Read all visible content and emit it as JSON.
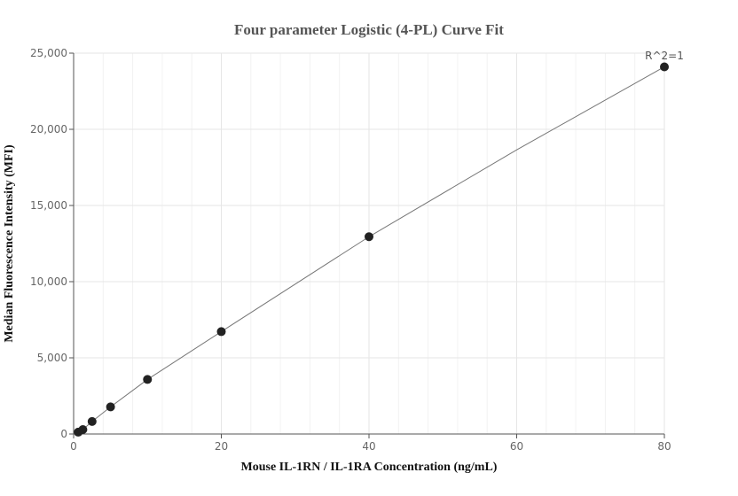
{
  "chart_data": {
    "type": "scatter",
    "title": "Four parameter Logistic (4-PL) Curve Fit",
    "xlabel": "Mouse IL-1RN / IL-1RA Concentration (ng/mL)",
    "ylabel": "Median Fluorescence Intensity (MFI)",
    "xlim": [
      0,
      80
    ],
    "ylim": [
      0,
      25000
    ],
    "x_ticks": [
      0,
      20,
      40,
      60,
      80
    ],
    "y_ticks": [
      0,
      5000,
      10000,
      15000,
      20000,
      25000
    ],
    "x_tick_labels": [
      "0",
      "20",
      "40",
      "60",
      "80"
    ],
    "y_tick_labels": [
      "0",
      "5,000",
      "10,000",
      "15,000",
      "20,000",
      "25,000"
    ],
    "grid": true,
    "annotation": "R^2=1",
    "points": {
      "x": [
        0.625,
        1.25,
        2.5,
        5,
        10,
        20,
        40,
        80
      ],
      "y": [
        120,
        290,
        820,
        1780,
        3580,
        6720,
        12950,
        24100
      ]
    },
    "fit_curve": {
      "x": [
        0,
        0.625,
        1.25,
        2.5,
        5,
        10,
        20,
        40,
        60,
        80
      ],
      "y": [
        0,
        120,
        290,
        820,
        1780,
        3580,
        6720,
        12950,
        18650,
        24100
      ]
    },
    "colors": {
      "point": "#222222",
      "curve": "#777777",
      "grid": "#e6e6e6",
      "minor_grid": "#f2f2f2",
      "axis": "#555555"
    }
  }
}
